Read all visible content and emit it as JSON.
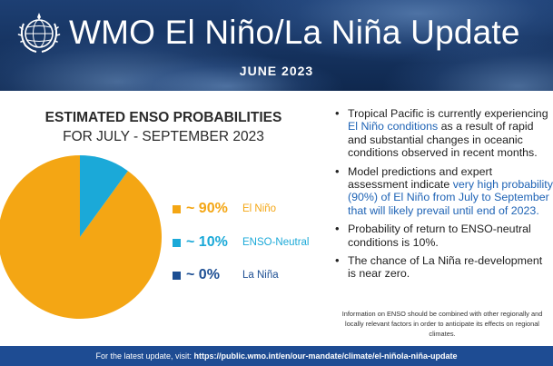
{
  "header": {
    "title": "WMO El Niño/La Niña Update",
    "date": "JUNE 2023"
  },
  "chart_data": {
    "type": "pie",
    "title": "ESTIMATED ENSO PROBABILITIES",
    "subtitle": "FOR JULY - SEPTEMBER 2023",
    "slices": [
      {
        "label": "~ 90%",
        "name": "El Niño",
        "value": 90,
        "color": "#f4a614"
      },
      {
        "label": "~ 10%",
        "name": "ENSO-Neutral",
        "value": 10,
        "color": "#1ba9d8"
      },
      {
        "label": "~ 0%",
        "name": "La Niña",
        "value": 0,
        "color": "#1c4e93"
      }
    ],
    "legend_position": "right"
  },
  "bullets": {
    "b1_pre": "Tropical Pacific is currently experiencing ",
    "b1_hl": "El Niño conditions",
    "b1_post": " as a result of rapid and substantial changes in oceanic conditions observed in recent months.",
    "b2_pre": "Model predictions and expert assessment indicate ",
    "b2_hl": "very high probability (90%) of El Niño from July to September that will likely prevail until end of 2023.",
    "b3": "Probability of return to ENSO-neutral conditions is 10%.",
    "b4": "The chance of La Niña re-development is near zero."
  },
  "note": "Information on ENSO should be combined with other regionally and locally relevant factors in order to anticipate its effects on regional climates.",
  "footer": {
    "prefix": "For the latest update, visit: ",
    "url": "https://public.wmo.int/en/our-mandate/climate/el-niñola-niña-update"
  },
  "colors": {
    "header_bg": "#173563",
    "accent": "#1e63b5",
    "footer_bg": "#1e4c93"
  }
}
